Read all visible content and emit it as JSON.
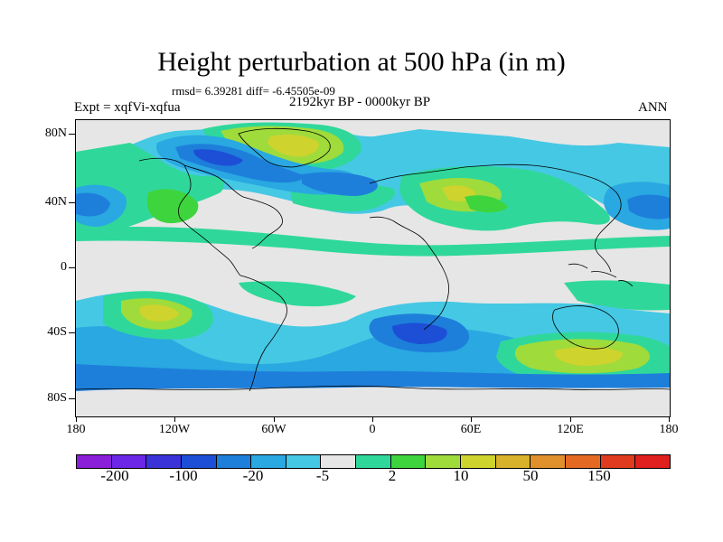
{
  "title": "Height perturbation at 500 hPa (in m)",
  "stats": "rmsd= 6.39281 diff= -6.45505e-09",
  "experiment": "Expt = xqfVi-xqfua",
  "period": "2192kyr BP - 0000kyr BP",
  "season": "ANN",
  "lat_labels": [
    "80N",
    "40N",
    "0",
    "40S",
    "80S"
  ],
  "lon_labels": [
    "180",
    "120W",
    "60W",
    "0",
    "60E",
    "120E",
    "180"
  ],
  "colorbar": {
    "colors": [
      "#8a1fd8",
      "#6b26e6",
      "#3a33d8",
      "#1d4fd6",
      "#1e7fdb",
      "#29a8e1",
      "#45c8e4",
      "#e6e6e6",
      "#2fd89a",
      "#3ed43e",
      "#9fdb3b",
      "#cfd32e",
      "#d8b22a",
      "#e0902a",
      "#e46a24",
      "#e03b1f",
      "#e01f1f"
    ],
    "labels": [
      "-200",
      "-100",
      "-20",
      "-5",
      "2",
      "10",
      "50",
      "150"
    ]
  },
  "palette": {
    "background": "#e6e6e6",
    "light_blue": "#45c8e4",
    "mid_blue": "#29a8e1",
    "blue": "#1e7fdb",
    "dark_blue": "#1d4fd6",
    "teal_green": "#2fd89a",
    "green": "#3ed43e",
    "yellow_green": "#9fdb3b",
    "olive": "#cfd32e",
    "gold": "#d8b22a",
    "coastline": "#000000"
  }
}
